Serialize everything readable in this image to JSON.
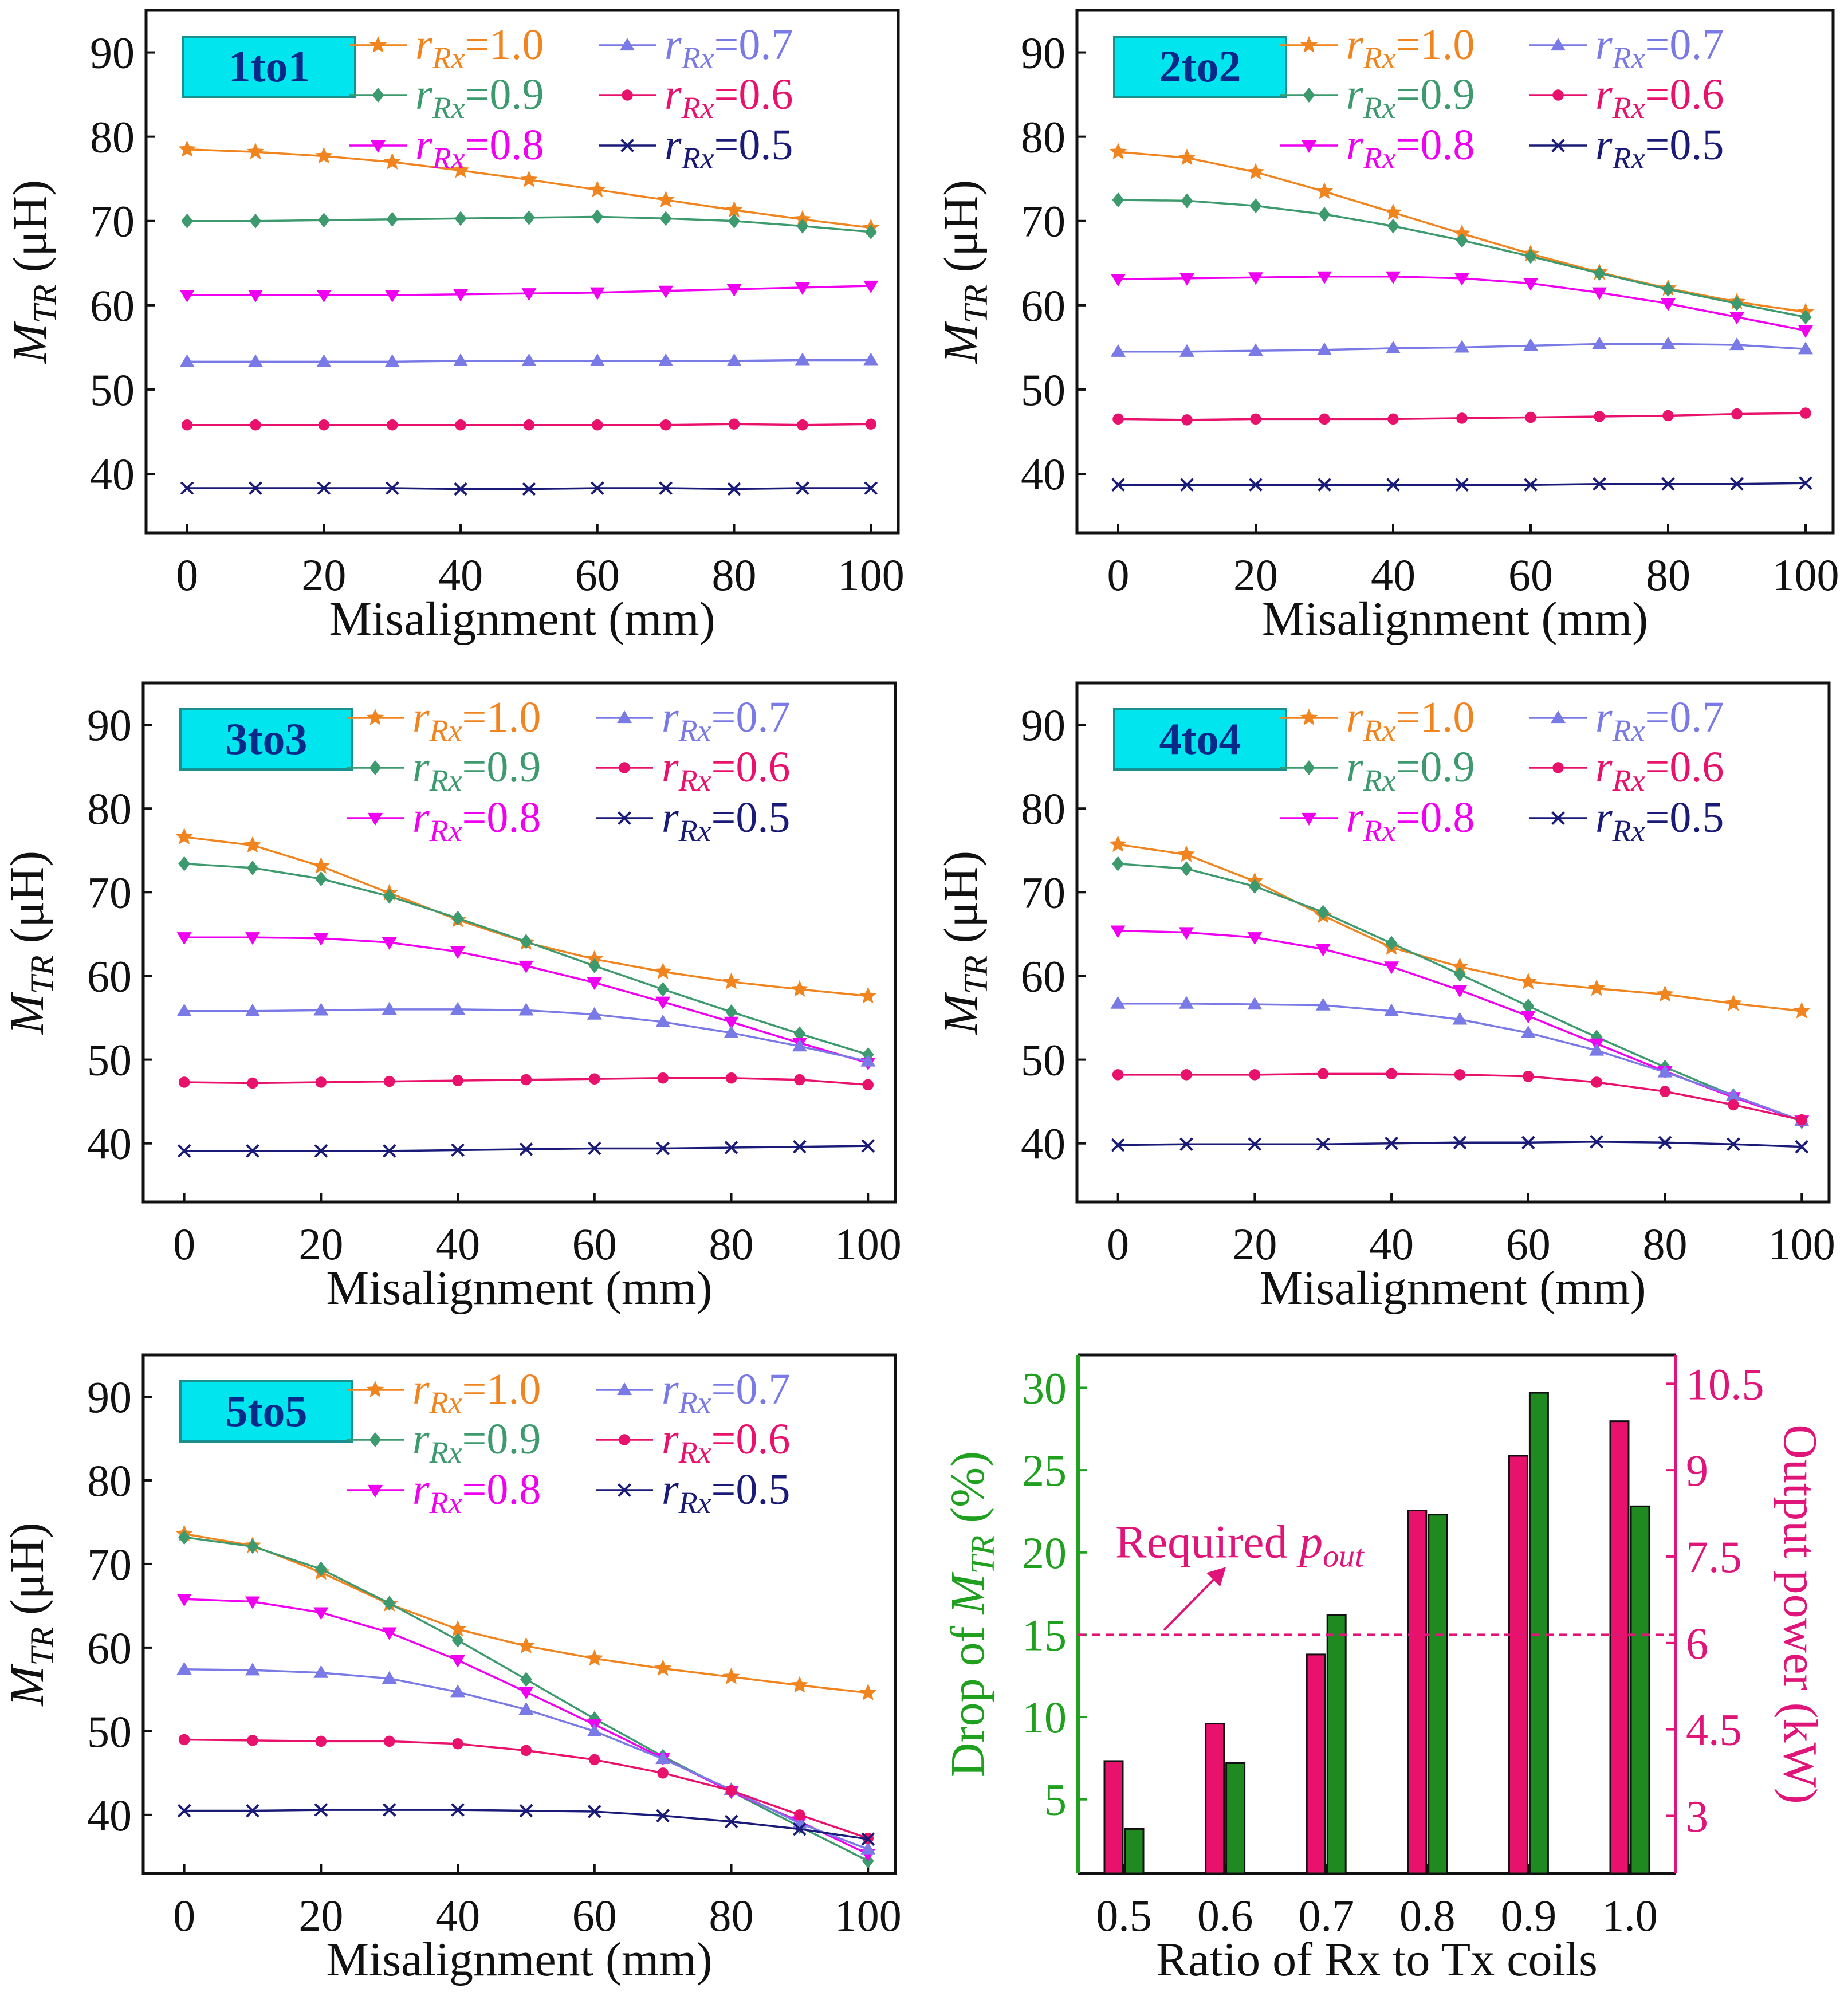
{
  "colors": {
    "r10": "#f0841f",
    "r09": "#3d9a6e",
    "r08": "#f000f0",
    "r07": "#7a7ae6",
    "r06": "#e8126c",
    "r05": "#1a1a78",
    "tag_fill": "#00e5ee",
    "tag_border": "#1a8f8f",
    "bar_drop": "#1f8a1f",
    "bar_power": "#e8126c",
    "axis_left": "#1fa01f",
    "axis_right": "#e0157a"
  },
  "chart_data": [
    {
      "type": "line",
      "tag": "1to1",
      "xlabel": "Misalignment (mm)",
      "ylabel": "M_TR (μH)",
      "xlim": [
        -6,
        104
      ],
      "ylim": [
        33,
        95
      ],
      "xticks": [
        "0",
        "20",
        "40",
        "60",
        "80",
        "100"
      ],
      "yticks": [
        "40",
        "50",
        "60",
        "70",
        "80",
        "90"
      ],
      "x": [
        0,
        10,
        20,
        30,
        40,
        50,
        60,
        70,
        80,
        90,
        100
      ],
      "series": [
        {
          "name": "r_Rx=1.0",
          "key": "r10",
          "marker": "star",
          "values": [
            78.5,
            78.2,
            77.7,
            77.0,
            76.0,
            74.9,
            73.7,
            72.5,
            71.3,
            70.2,
            69.2
          ]
        },
        {
          "name": "r_Rx=0.9",
          "key": "r09",
          "marker": "diamond",
          "values": [
            70.0,
            70.0,
            70.1,
            70.2,
            70.3,
            70.4,
            70.5,
            70.3,
            70.0,
            69.4,
            68.7
          ]
        },
        {
          "name": "r_Rx=0.8",
          "key": "r08",
          "marker": "tridown",
          "values": [
            61.2,
            61.2,
            61.2,
            61.2,
            61.3,
            61.4,
            61.5,
            61.7,
            61.9,
            62.1,
            62.3
          ]
        },
        {
          "name": "r_Rx=0.7",
          "key": "r07",
          "marker": "triup",
          "values": [
            53.3,
            53.3,
            53.3,
            53.3,
            53.4,
            53.4,
            53.4,
            53.4,
            53.4,
            53.5,
            53.5
          ]
        },
        {
          "name": "r_Rx=0.6",
          "key": "r06",
          "marker": "circle",
          "values": [
            45.8,
            45.8,
            45.8,
            45.8,
            45.8,
            45.8,
            45.8,
            45.8,
            45.9,
            45.8,
            45.9
          ]
        },
        {
          "name": "r_Rx=0.5",
          "key": "r05",
          "marker": "x",
          "values": [
            38.3,
            38.3,
            38.3,
            38.3,
            38.2,
            38.2,
            38.3,
            38.3,
            38.2,
            38.3,
            38.3
          ]
        }
      ]
    },
    {
      "type": "line",
      "tag": "2to2",
      "xlabel": "Misalignment (mm)",
      "ylabel": "M_TR (μH)",
      "xlim": [
        -6,
        104
      ],
      "ylim": [
        33,
        95
      ],
      "xticks": [
        "0",
        "20",
        "40",
        "60",
        "80",
        "100"
      ],
      "yticks": [
        "40",
        "50",
        "60",
        "70",
        "80",
        "90"
      ],
      "x": [
        0,
        10,
        20,
        30,
        40,
        50,
        60,
        70,
        80,
        90,
        100
      ],
      "series": [
        {
          "name": "r_Rx=1.0",
          "key": "r10",
          "marker": "star",
          "values": [
            78.2,
            77.5,
            75.8,
            73.5,
            71.0,
            68.5,
            66.1,
            63.9,
            62.0,
            60.4,
            59.2
          ]
        },
        {
          "name": "r_Rx=0.9",
          "key": "r09",
          "marker": "diamond",
          "values": [
            72.5,
            72.4,
            71.8,
            70.8,
            69.4,
            67.7,
            65.8,
            63.8,
            61.9,
            60.2,
            58.6
          ]
        },
        {
          "name": "r_Rx=0.8",
          "key": "r08",
          "marker": "tridown",
          "values": [
            63.1,
            63.2,
            63.3,
            63.4,
            63.4,
            63.2,
            62.6,
            61.5,
            60.2,
            58.6,
            57.0
          ]
        },
        {
          "name": "r_Rx=0.7",
          "key": "r07",
          "marker": "triup",
          "values": [
            54.5,
            54.5,
            54.6,
            54.7,
            54.9,
            55.0,
            55.2,
            55.4,
            55.4,
            55.3,
            54.8
          ]
        },
        {
          "name": "r_Rx=0.6",
          "key": "r06",
          "marker": "circle",
          "values": [
            46.5,
            46.4,
            46.5,
            46.5,
            46.5,
            46.6,
            46.7,
            46.8,
            46.9,
            47.1,
            47.2
          ]
        },
        {
          "name": "r_Rx=0.5",
          "key": "r05",
          "marker": "x",
          "values": [
            38.7,
            38.7,
            38.7,
            38.7,
            38.7,
            38.7,
            38.7,
            38.8,
            38.8,
            38.8,
            38.9
          ]
        }
      ]
    },
    {
      "type": "line",
      "tag": "3to3",
      "xlabel": "Misalignment (mm)",
      "ylabel": "M_TR (μH)",
      "xlim": [
        -6,
        104
      ],
      "ylim": [
        33,
        95
      ],
      "xticks": [
        "0",
        "20",
        "40",
        "60",
        "80",
        "100"
      ],
      "yticks": [
        "40",
        "50",
        "60",
        "70",
        "80",
        "90"
      ],
      "x": [
        0,
        10,
        20,
        30,
        40,
        50,
        60,
        70,
        80,
        90,
        100
      ],
      "series": [
        {
          "name": "r_Rx=1.0",
          "key": "r10",
          "marker": "star",
          "values": [
            76.6,
            75.6,
            73.1,
            69.9,
            66.7,
            64.0,
            62.0,
            60.5,
            59.3,
            58.4,
            57.6
          ]
        },
        {
          "name": "r_Rx=0.9",
          "key": "r09",
          "marker": "diamond",
          "values": [
            73.4,
            72.9,
            71.6,
            69.5,
            66.9,
            64.1,
            61.2,
            58.4,
            55.7,
            53.1,
            50.6
          ]
        },
        {
          "name": "r_Rx=0.8",
          "key": "r08",
          "marker": "tridown",
          "values": [
            64.6,
            64.6,
            64.5,
            64.0,
            62.9,
            61.2,
            59.2,
            56.9,
            54.5,
            52.0,
            49.6
          ]
        },
        {
          "name": "r_Rx=0.7",
          "key": "r07",
          "marker": "triup",
          "values": [
            55.8,
            55.8,
            55.9,
            56.0,
            56.0,
            55.9,
            55.4,
            54.5,
            53.2,
            51.6,
            49.8
          ]
        },
        {
          "name": "r_Rx=0.6",
          "key": "r06",
          "marker": "circle",
          "values": [
            47.3,
            47.2,
            47.3,
            47.4,
            47.5,
            47.6,
            47.7,
            47.8,
            47.8,
            47.6,
            47.0
          ]
        },
        {
          "name": "r_Rx=0.5",
          "key": "r05",
          "marker": "x",
          "values": [
            39.1,
            39.1,
            39.1,
            39.1,
            39.2,
            39.3,
            39.4,
            39.4,
            39.5,
            39.6,
            39.7
          ]
        }
      ]
    },
    {
      "type": "line",
      "tag": "4to4",
      "xlabel": "Misalignment (mm)",
      "ylabel": "M_TR (μH)",
      "xlim": [
        -6,
        104
      ],
      "ylim": [
        33,
        95
      ],
      "xticks": [
        "0",
        "20",
        "40",
        "60",
        "80",
        "100"
      ],
      "yticks": [
        "40",
        "50",
        "60",
        "70",
        "80",
        "90"
      ],
      "x": [
        0,
        10,
        20,
        30,
        40,
        50,
        60,
        70,
        80,
        90,
        100
      ],
      "series": [
        {
          "name": "r_Rx=1.0",
          "key": "r10",
          "marker": "star",
          "values": [
            75.7,
            74.5,
            71.3,
            67.2,
            63.4,
            61.1,
            59.3,
            58.5,
            57.8,
            56.7,
            55.8
          ]
        },
        {
          "name": "r_Rx=0.9",
          "key": "r09",
          "marker": "diamond",
          "values": [
            73.4,
            72.8,
            70.7,
            67.6,
            63.9,
            60.2,
            56.4,
            52.7,
            49.1,
            45.7,
            42.6
          ]
        },
        {
          "name": "r_Rx=0.8",
          "key": "r08",
          "marker": "tridown",
          "values": [
            65.4,
            65.2,
            64.6,
            63.2,
            61.1,
            58.3,
            55.2,
            51.9,
            48.6,
            45.5,
            42.7
          ]
        },
        {
          "name": "r_Rx=0.7",
          "key": "r07",
          "marker": "triup",
          "values": [
            56.7,
            56.7,
            56.6,
            56.5,
            55.8,
            54.8,
            53.2,
            51.1,
            48.5,
            45.7,
            42.7
          ]
        },
        {
          "name": "r_Rx=0.6",
          "key": "r06",
          "marker": "circle",
          "values": [
            48.2,
            48.2,
            48.2,
            48.3,
            48.3,
            48.2,
            48.0,
            47.3,
            46.2,
            44.6,
            42.8
          ]
        },
        {
          "name": "r_Rx=0.5",
          "key": "r05",
          "marker": "x",
          "values": [
            39.8,
            39.9,
            39.9,
            39.9,
            40.0,
            40.1,
            40.1,
            40.2,
            40.1,
            39.9,
            39.6
          ]
        }
      ]
    },
    {
      "type": "line",
      "tag": "5to5",
      "xlabel": "Misalignment (mm)",
      "ylabel": "M_TR (μH)",
      "xlim": [
        -6,
        104
      ],
      "ylim": [
        33,
        95
      ],
      "xticks": [
        "0",
        "20",
        "40",
        "60",
        "80",
        "100"
      ],
      "yticks": [
        "40",
        "50",
        "60",
        "70",
        "80",
        "90"
      ],
      "x": [
        0,
        10,
        20,
        30,
        40,
        50,
        60,
        70,
        80,
        90,
        100
      ],
      "series": [
        {
          "name": "r_Rx=1.0",
          "key": "r10",
          "marker": "star",
          "values": [
            73.6,
            72.2,
            69.0,
            65.2,
            62.2,
            60.2,
            58.7,
            57.5,
            56.5,
            55.5,
            54.6
          ]
        },
        {
          "name": "r_Rx=0.9",
          "key": "r09",
          "marker": "diamond",
          "values": [
            73.2,
            72.1,
            69.4,
            65.3,
            60.9,
            56.2,
            51.5,
            47.0,
            42.8,
            38.6,
            34.5
          ]
        },
        {
          "name": "r_Rx=0.8",
          "key": "r08",
          "marker": "tridown",
          "values": [
            65.8,
            65.5,
            64.2,
            61.8,
            58.5,
            54.7,
            50.8,
            46.8,
            42.8,
            39.2,
            35.3
          ]
        },
        {
          "name": "r_Rx=0.7",
          "key": "r07",
          "marker": "triup",
          "values": [
            57.4,
            57.3,
            57.0,
            56.3,
            54.7,
            52.6,
            50.0,
            46.7,
            43.0,
            39.0,
            35.9
          ]
        },
        {
          "name": "r_Rx=0.6",
          "key": "r06",
          "marker": "circle",
          "values": [
            49.0,
            48.9,
            48.8,
            48.8,
            48.5,
            47.7,
            46.6,
            45.0,
            42.9,
            40.0,
            37.2
          ]
        },
        {
          "name": "r_Rx=0.5",
          "key": "r05",
          "marker": "x",
          "values": [
            40.5,
            40.5,
            40.6,
            40.6,
            40.6,
            40.5,
            40.4,
            39.9,
            39.2,
            38.3,
            37.1
          ]
        }
      ]
    },
    {
      "type": "bar",
      "categories": [
        "0.5",
        "0.6",
        "0.7",
        "0.8",
        "0.9",
        "1.0"
      ],
      "xlabel": "Ratio of Rx to Tx coils",
      "ylabel": "Drop of M_TR (%)",
      "ylabel2": "Output power (kW)",
      "ylim": [
        0.5,
        32
      ],
      "ylim2": [
        2,
        11
      ],
      "yticks": [
        "5",
        "10",
        "15",
        "20",
        "25",
        "30"
      ],
      "yticks2": [
        "3",
        "4.5",
        "6",
        "7.5",
        "9",
        "10.5"
      ],
      "series": [
        {
          "name": "Output power (kW)",
          "axis": "right",
          "color_key": "bar_power",
          "values": [
            3.95,
            4.6,
            5.8,
            8.3,
            9.25,
            9.85
          ]
        },
        {
          "name": "Drop of M_TR (%)",
          "axis": "left",
          "color_key": "bar_drop",
          "values": [
            3.2,
            7.2,
            16.2,
            22.3,
            29.7,
            22.8
          ]
        }
      ],
      "reference_line": {
        "value": 15,
        "axis": "left",
        "label": "Required",
        "label_sub": "out",
        "label_main": "p"
      }
    }
  ]
}
